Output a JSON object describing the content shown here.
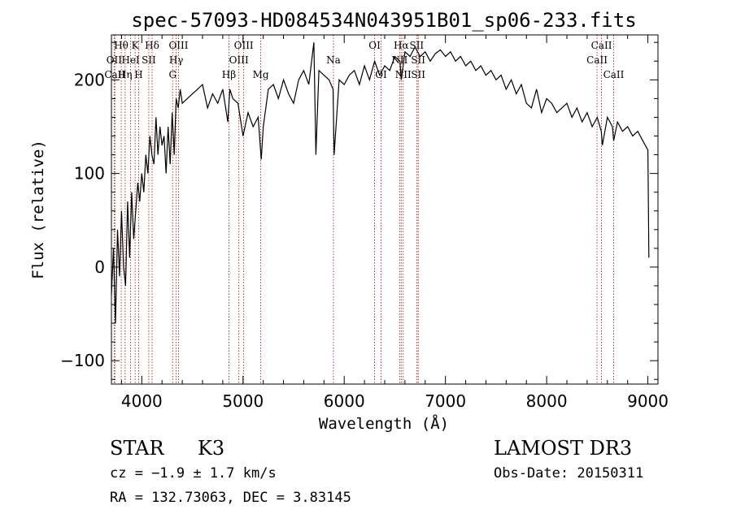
{
  "chart_data": {
    "type": "line",
    "title": "spec-57093-HD084534N043951B01_sp06-233.fits",
    "xlabel": "Wavelength (Å)",
    "ylabel": "Flux (relative)",
    "xlim": [
      3700,
      9100
    ],
    "ylim": [
      -125,
      248
    ],
    "x_ticks": [
      4000,
      5000,
      6000,
      7000,
      8000,
      9000
    ],
    "y_ticks": [
      -100,
      0,
      100,
      200
    ],
    "grid": false,
    "series": [
      {
        "name": "flux",
        "x": [
          3700,
          3720,
          3740,
          3760,
          3780,
          3800,
          3820,
          3840,
          3860,
          3880,
          3900,
          3920,
          3940,
          3960,
          3980,
          4000,
          4020,
          4040,
          4060,
          4080,
          4100,
          4120,
          4140,
          4160,
          4180,
          4200,
          4220,
          4240,
          4260,
          4280,
          4300,
          4320,
          4340,
          4360,
          4380,
          4400,
          4450,
          4500,
          4550,
          4600,
          4650,
          4700,
          4750,
          4800,
          4850,
          4870,
          4900,
          4950,
          5000,
          5050,
          5100,
          5150,
          5180,
          5200,
          5250,
          5300,
          5350,
          5400,
          5450,
          5500,
          5550,
          5600,
          5650,
          5700,
          5720,
          5750,
          5800,
          5850,
          5890,
          5900,
          5950,
          6000,
          6050,
          6100,
          6150,
          6200,
          6250,
          6300,
          6350,
          6400,
          6450,
          6500,
          6550,
          6563,
          6600,
          6650,
          6700,
          6750,
          6800,
          6850,
          6900,
          6950,
          7000,
          7050,
          7100,
          7150,
          7200,
          7250,
          7300,
          7350,
          7400,
          7450,
          7500,
          7550,
          7600,
          7650,
          7700,
          7750,
          7800,
          7850,
          7900,
          7950,
          8000,
          8050,
          8100,
          8150,
          8200,
          8250,
          8300,
          8350,
          8400,
          8450,
          8500,
          8540,
          8550,
          8600,
          8650,
          8662,
          8700,
          8750,
          8800,
          8850,
          8900,
          8950,
          9000,
          9010
        ],
        "values": [
          -30,
          20,
          -60,
          40,
          -10,
          60,
          0,
          -20,
          70,
          10,
          80,
          30,
          60,
          90,
          70,
          100,
          80,
          120,
          100,
          140,
          120,
          110,
          160,
          120,
          150,
          130,
          140,
          100,
          150,
          110,
          165,
          120,
          180,
          170,
          190,
          175,
          180,
          185,
          190,
          195,
          170,
          185,
          175,
          190,
          155,
          190,
          180,
          175,
          140,
          165,
          150,
          160,
          115,
          150,
          190,
          195,
          180,
          200,
          185,
          175,
          200,
          210,
          195,
          240,
          120,
          210,
          205,
          200,
          190,
          120,
          200,
          195,
          205,
          210,
          195,
          215,
          200,
          220,
          205,
          215,
          210,
          225,
          220,
          200,
          230,
          225,
          235,
          225,
          230,
          220,
          228,
          232,
          225,
          230,
          220,
          225,
          215,
          220,
          210,
          215,
          205,
          210,
          200,
          205,
          190,
          200,
          185,
          195,
          175,
          170,
          190,
          165,
          180,
          175,
          165,
          170,
          175,
          160,
          170,
          155,
          165,
          150,
          160,
          145,
          130,
          160,
          150,
          135,
          155,
          145,
          150,
          140,
          145,
          135,
          125,
          10
        ]
      }
    ],
    "line_markers": [
      {
        "label": "Hθ",
        "wavelength": 3797,
        "row": 1
      },
      {
        "label": "OII",
        "wavelength": 3727,
        "row": 2
      },
      {
        "label": "CaII",
        "wavelength": 3734,
        "row": 3
      },
      {
        "label": "K",
        "wavelength": 3934,
        "row": 1
      },
      {
        "label": "HeI",
        "wavelength": 3889,
        "row": 2
      },
      {
        "label": "Hη",
        "wavelength": 3835,
        "row": 3
      },
      {
        "label": "H",
        "wavelength": 3969,
        "row": 3
      },
      {
        "label": "SII",
        "wavelength": 4069,
        "row": 2
      },
      {
        "label": "Hδ",
        "wavelength": 4102,
        "row": 1
      },
      {
        "label": "OIII",
        "wavelength": 4363,
        "row": 1
      },
      {
        "label": "Hγ",
        "wavelength": 4340,
        "row": 2
      },
      {
        "label": "G",
        "wavelength": 4305,
        "row": 3
      },
      {
        "label": "Hβ",
        "wavelength": 4861,
        "row": 3
      },
      {
        "label": "OIII",
        "wavelength": 5007,
        "row": 1
      },
      {
        "label": "OIII",
        "wavelength": 4959,
        "row": 2
      },
      {
        "label": "Mg",
        "wavelength": 5175,
        "row": 3
      },
      {
        "label": "Na",
        "wavelength": 5893,
        "row": 2
      },
      {
        "label": "OI",
        "wavelength": 6300,
        "row": 1
      },
      {
        "label": "OI",
        "wavelength": 6364,
        "row": 3
      },
      {
        "label": "Hα",
        "wavelength": 6563,
        "row": 1
      },
      {
        "label": "NII",
        "wavelength": 6548,
        "row": 2
      },
      {
        "label": "NII",
        "wavelength": 6583,
        "row": 3
      },
      {
        "label": "SII",
        "wavelength": 6716,
        "row": 1
      },
      {
        "label": "SII",
        "wavelength": 6731,
        "row": 2
      },
      {
        "label": "SII",
        "wavelength": 6731,
        "row": 3
      },
      {
        "label": "CaII",
        "wavelength": 8542,
        "row": 1
      },
      {
        "label": "CaII",
        "wavelength": 8498,
        "row": 2
      },
      {
        "label": "CaII",
        "wavelength": 8662,
        "row": 3
      }
    ]
  },
  "info": {
    "object_class": "STAR",
    "subclass": "K3",
    "survey": "LAMOST DR3",
    "redshift_text": "cz = −1.9 ± 1.7 km/s",
    "obs_date": "Obs-Date: 20150311",
    "coords": "RA = 132.73063, DEC =    3.83145"
  }
}
